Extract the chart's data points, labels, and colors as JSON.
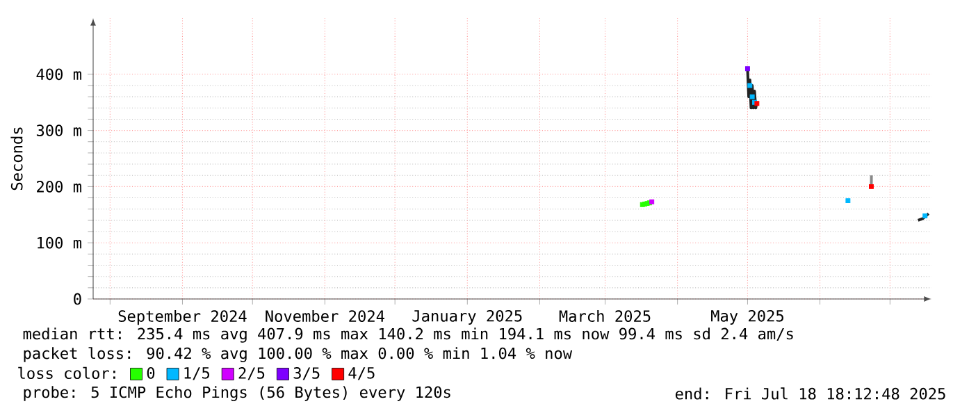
{
  "chart_data": {
    "type": "scatter",
    "ylabel": "Seconds",
    "legend_title": "loss color:",
    "legend": "bottom",
    "grid": true,
    "marker": "square",
    "xlim": [
      "2024-07-24T18:12",
      "2025-07-18T18:12"
    ],
    "xticks": [
      {
        "value": "2024-08-01",
        "label": null
      },
      {
        "value": "2024-09-01",
        "label": "September 2024"
      },
      {
        "value": "2024-10-01",
        "label": null
      },
      {
        "value": "2024-11-01",
        "label": "November 2024"
      },
      {
        "value": "2024-12-01",
        "label": null
      },
      {
        "value": "2025-01-01",
        "label": "January 2025"
      },
      {
        "value": "2025-02-01",
        "label": null
      },
      {
        "value": "2025-03-01",
        "label": "March 2025"
      },
      {
        "value": "2025-04-01",
        "label": null
      },
      {
        "value": "2025-05-01",
        "label": "May 2025"
      },
      {
        "value": "2025-06-01",
        "label": null
      },
      {
        "value": "2025-07-01",
        "label": null
      }
    ],
    "ylim": [
      0,
      500
    ],
    "yticks": [
      {
        "value": 0,
        "label": "0"
      },
      {
        "value": 100,
        "label": "100 m"
      },
      {
        "value": 200,
        "label": "200 m"
      },
      {
        "value": 300,
        "label": "300 m"
      },
      {
        "value": 400,
        "label": "400 m"
      }
    ],
    "series": [
      {
        "type": "line",
        "marker": "none",
        "color": "#222222",
        "x": [
          "2025-05-01T00:00",
          "2025-05-01T12:00",
          "2025-05-02T00:00",
          "2025-05-02T12:00",
          "2025-05-03T00:00",
          "2025-05-03T12:00",
          "2025-05-04T00:00",
          "2025-05-04T12:00",
          "2025-05-05T00:00"
        ],
        "values": [
          410,
          360,
          390,
          340,
          380,
          340,
          370,
          340,
          350
        ]
      },
      {
        "type": "line",
        "marker": "none",
        "color": "#888888",
        "x": [
          "2025-06-23T00:00",
          "2025-06-23T01:00"
        ],
        "values": [
          200,
          220
        ]
      },
      {
        "type": "line",
        "marker": "none",
        "color": "#222222",
        "x": [
          "2025-07-13T00:00",
          "2025-07-15T00:00",
          "2025-07-17T12:00"
        ],
        "values": [
          140,
          143,
          152
        ]
      },
      {
        "name": "0",
        "color": "#26ff00",
        "x": [
          "2025-03-17",
          "2025-03-18",
          "2025-03-19",
          "2025-03-20"
        ],
        "values": [
          168,
          169,
          170,
          171
        ]
      },
      {
        "name": "1/5",
        "color": "#00b8ff",
        "x": [
          "2025-05-02",
          "2025-05-03",
          "2025-05-04",
          "2025-06-13",
          "2025-07-16"
        ],
        "values": [
          380,
          360,
          350,
          175,
          148
        ]
      },
      {
        "name": "2/5",
        "color": "#d000ff",
        "x": [
          "2025-03-21"
        ],
        "values": [
          173
        ]
      },
      {
        "name": "3/5",
        "color": "#7e00ff",
        "x": [
          "2025-05-01"
        ],
        "values": [
          410
        ]
      },
      {
        "name": "4/5",
        "color": "#ff0000",
        "x": [
          "2025-05-05",
          "2025-06-23"
        ],
        "values": [
          348,
          200
        ]
      }
    ],
    "annotations": [
      "median rtt:  235.4 ms avg  407.9 ms max  140.2 ms min  194.1 ms now  99.4 ms sd  2.4   am/s",
      "packet loss: 90.42 % avg  100.00 % max  0.00 % min  1.04 % now",
      "probe:       5 ICMP Echo Pings (56 Bytes) every 120s",
      "end: Fri Jul 18 18:12:48 2025"
    ]
  }
}
